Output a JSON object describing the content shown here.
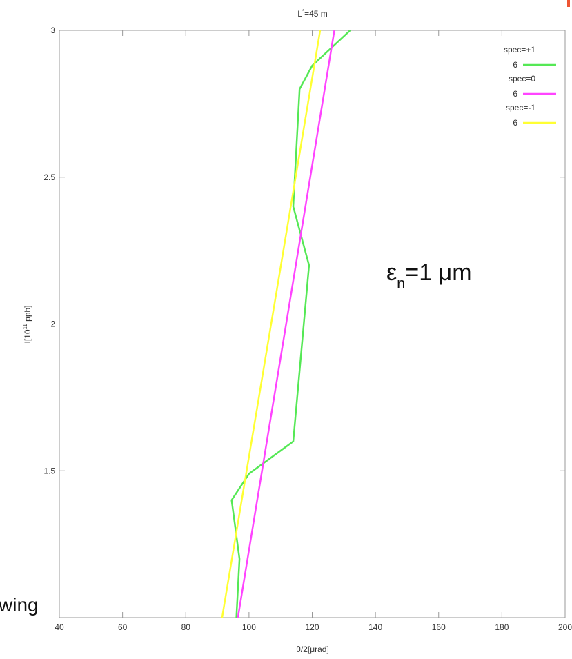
{
  "chart_data": {
    "type": "line",
    "title": "L*=45 m",
    "title_main": "L",
    "title_sup": "*",
    "title_rest": "=45 m",
    "xlabel": "θ/2[μrad]",
    "ylabel_parts": {
      "pre": "I[10",
      "sup": "11",
      "post": " ppb]"
    },
    "xlim": [
      40,
      200
    ],
    "ylim": [
      1,
      3
    ],
    "xticks": [
      40,
      60,
      80,
      100,
      120,
      140,
      160,
      180,
      200
    ],
    "yticks": [
      1.5,
      2,
      2.5,
      3
    ],
    "ytick_labels": [
      "1.5",
      "2",
      "2.5",
      "3"
    ],
    "grid": false,
    "legend_placement": "top-right",
    "series": [
      {
        "name_line1": "spec=+1",
        "name_line2": "6",
        "color": "#55e855",
        "points": [
          {
            "x": 96,
            "y": 1.0
          },
          {
            "x": 97,
            "y": 1.2
          },
          {
            "x": 94.5,
            "y": 1.4
          },
          {
            "x": 100,
            "y": 1.49
          },
          {
            "x": 114,
            "y": 1.6
          },
          {
            "x": 119,
            "y": 2.2
          },
          {
            "x": 114,
            "y": 2.4
          },
          {
            "x": 116,
            "y": 2.8
          },
          {
            "x": 120,
            "y": 2.88
          },
          {
            "x": 132,
            "y": 3.0
          }
        ]
      },
      {
        "name_line1": "spec=0",
        "name_line2": "6",
        "color": "#ff44ff",
        "points": [
          {
            "x": 96.5,
            "y": 1.0
          },
          {
            "x": 127,
            "y": 3.0
          }
        ]
      },
      {
        "name_line1": "spec=-1",
        "name_line2": "6",
        "color": "#ffff33",
        "points": [
          {
            "x": 91.5,
            "y": 1.0
          },
          {
            "x": 122.5,
            "y": 3.0
          }
        ]
      }
    ],
    "annotation": {
      "main": "ε",
      "sub": "n",
      "rest": "=1 μm"
    }
  },
  "overlay_text": "wing"
}
